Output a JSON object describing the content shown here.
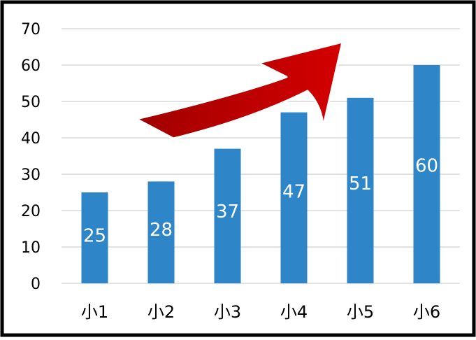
{
  "chart_data": {
    "type": "bar",
    "categories": [
      "小1",
      "小2",
      "小3",
      "小4",
      "小5",
      "小6"
    ],
    "values": [
      25,
      28,
      37,
      47,
      51,
      60
    ],
    "data_labels": [
      "25",
      "28",
      "37",
      "47",
      "51",
      "60"
    ],
    "y_ticks": [
      "0",
      "10",
      "20",
      "30",
      "40",
      "50",
      "60",
      "70"
    ],
    "ylim": [
      0,
      70
    ],
    "grid": true,
    "bar_color": "#2E86C9",
    "grid_color": "#D9D9D9",
    "arrow_color": "#C00000",
    "title": "",
    "xlabel": "",
    "ylabel": ""
  }
}
